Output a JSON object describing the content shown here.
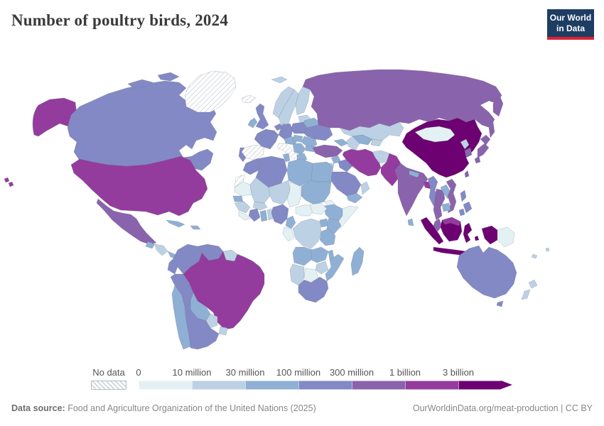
{
  "header": {
    "title": "Number of poultry birds, 2024",
    "logo_line1": "Our World",
    "logo_line2": "in Data",
    "logo_bg": "#1d3d63",
    "logo_accent": "#dc2334"
  },
  "chart_data": {
    "type": "choropleth-map",
    "title": "Number of poultry birds, 2024",
    "year": 2024,
    "unit": "poultry birds",
    "legend": {
      "no_data_label": "No data",
      "no_data_pattern": "diagonal-hatch",
      "tick_labels": [
        "0",
        "10 million",
        "30 million",
        "100 million",
        "300 million",
        "1 billion",
        "3 billion"
      ],
      "bins": [
        {
          "range": "0 – 10 million",
          "color": "#e4f1f4"
        },
        {
          "range": "10 – 30 million",
          "color": "#bdd1e5"
        },
        {
          "range": "30 – 100 million",
          "color": "#8fb0d4"
        },
        {
          "range": "100 – 300 million",
          "color": "#8289c5"
        },
        {
          "range": "300 million – 1 billion",
          "color": "#8a63ad"
        },
        {
          "range": "1 – 3 billion",
          "color": "#943c9d"
        },
        {
          "range": "3+ billion",
          "color": "#6d0172"
        }
      ]
    },
    "country_bins": {
      "united-states": 5,
      "canada": 3,
      "greenland": "no_data",
      "mexico": 4,
      "guatemala": 2,
      "honduras-nicaragua": 1,
      "costa-rica-panama": 2,
      "cuba": 2,
      "hispaniola": 2,
      "colombia": 3,
      "venezuela": 3,
      "guyana-suriname": 1,
      "ecuador": 3,
      "peru": 3,
      "brazil": 5,
      "bolivia": 2,
      "paraguay": 1,
      "uruguay": 1,
      "chile": 2,
      "argentina": 3,
      "iceland": "no_data",
      "svalbard": 1,
      "norway": 1,
      "sweden": 1,
      "finland": 1,
      "baltics": 1,
      "denmark": 2,
      "united-kingdom": 3,
      "ireland": 2,
      "france": 3,
      "spain": "no_data",
      "portugal": 3,
      "benelux": 3,
      "germany": 3,
      "czech-austria": 2,
      "italy": "no_data",
      "poland": 3,
      "ukraine": 3,
      "belarus": 2,
      "romania": 2,
      "hungary-slovakia": 2,
      "balkans": 2,
      "greece": 2,
      "bulgaria": 2,
      "russia": 4,
      "turkey": 4,
      "caucasus": 2,
      "syria": 2,
      "iraq": 3,
      "israel-jordan": 1,
      "saudi-arabia": 3,
      "yemen": 2,
      "oman": 1,
      "kazakhstan": 1,
      "uzbekistan": 2,
      "turkmenistan": 1,
      "kyrgyzstan-tajikistan": 1,
      "iran": 5,
      "afghanistan": 1,
      "pakistan": 5,
      "india": 4,
      "nepal": 2,
      "bangladesh": 5,
      "sri-lanka": 2,
      "myanmar": 3,
      "thailand": 4,
      "laos": 2,
      "vietnam": 4,
      "cambodia": 2,
      "malaysia": 4,
      "malaysia-borneo": 5,
      "china": 6,
      "mongolia": 0,
      "north-korea": 1,
      "south-korea": 4,
      "japan": 4,
      "taiwan": 4,
      "philippines": 3,
      "indonesia": 6,
      "papua-new-guinea": 0,
      "australia": 3,
      "new-zealand": 1,
      "fiji": 1,
      "new-caledonia": 1,
      "morocco": 3,
      "western-sahara": "no_data",
      "algeria": 3,
      "tunisia": 2,
      "libya": 2,
      "egypt": 2,
      "mauritania": 0,
      "mali": 1,
      "senegal": 2,
      "guinea": 1,
      "sierra-leone-liberia": 0,
      "ivory-coast": 3,
      "ghana": 2,
      "togo-benin": 1,
      "burkina-faso": 1,
      "nigeria": 3,
      "niger": 1,
      "chad": 0,
      "sudan": 2,
      "eritrea": 0,
      "ethiopia": 2,
      "somalia": 0,
      "cameroon": 2,
      "central-african-republic": 0,
      "south-sudan": 0,
      "dr-congo": 1,
      "congo-gabon": 0,
      "uganda": 2,
      "kenya": 2,
      "tanzania": 2,
      "angola": 2,
      "zambia": 2,
      "malawi": 2,
      "mozambique": 2,
      "zimbabwe": 1,
      "botswana": 0,
      "namibia": 1,
      "south-africa": 3,
      "madagascar": 2
    }
  },
  "footer": {
    "source_label": "Data source:",
    "source": "Food and Agriculture Organization of the United Nations (2025)",
    "link": "OurWorldinData.org/meat-production | CC BY"
  }
}
